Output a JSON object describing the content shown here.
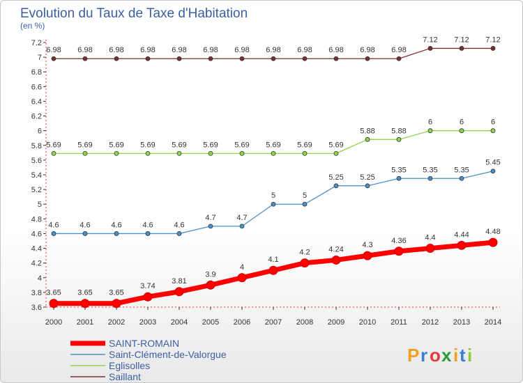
{
  "chart_data": {
    "type": "line",
    "title": "Evolution du Taux de Taxe d'Habitation",
    "subtitle": "(en %)",
    "x": [
      "2000",
      "2001",
      "2002",
      "2003",
      "2004",
      "2005",
      "2006",
      "2007",
      "2008",
      "2009",
      "2010",
      "2011",
      "2012",
      "2013",
      "2014"
    ],
    "ylim": [
      3.6,
      7.2
    ],
    "yticks": [
      "3.6",
      "3.8",
      "4",
      "4.2",
      "4.4",
      "4.6",
      "4.8",
      "5",
      "5.2",
      "5.4",
      "5.6",
      "5.8",
      "6",
      "6.2",
      "6.4",
      "6.6",
      "6.8",
      "7",
      "7.2"
    ],
    "grid": false,
    "legend_position": "bottom-left",
    "series": [
      {
        "name": "SAINT-ROMAIN",
        "color": "#ff0000",
        "values": [
          3.65,
          3.65,
          3.65,
          3.74,
          3.81,
          3.9,
          4,
          4.1,
          4.2,
          4.24,
          4.3,
          4.36,
          4.4,
          4.44,
          4.48
        ],
        "labels": [
          "3.65",
          "3.65",
          "3.65",
          "3.74",
          "3.81",
          "3.9",
          "4",
          "4.1",
          "4.2",
          "4.24",
          "4.3",
          "4.36",
          "4.4",
          "4.44",
          "4.48"
        ]
      },
      {
        "name": "Saint-Clément-de-Valorgue",
        "color": "#4a90c8",
        "values": [
          4.6,
          4.6,
          4.6,
          4.6,
          4.6,
          4.7,
          4.7,
          5,
          5,
          5.25,
          5.25,
          5.35,
          5.35,
          5.35,
          5.45
        ],
        "labels": [
          "4.6",
          "4.6",
          "4.6",
          "4.6",
          "4.6",
          "4.7",
          "4.7",
          "5",
          "5",
          "5.25",
          "5.25",
          "5.35",
          "5.35",
          "5.35",
          "5.45"
        ]
      },
      {
        "name": "Eglisolles",
        "color": "#8fd64a",
        "values": [
          5.69,
          5.69,
          5.69,
          5.69,
          5.69,
          5.69,
          5.69,
          5.69,
          5.69,
          5.69,
          5.88,
          5.88,
          6,
          6,
          6
        ],
        "labels": [
          "5.69",
          "5.69",
          "5.69",
          "5.69",
          "5.69",
          "5.69",
          "5.69",
          "5.69",
          "5.69",
          "5.69",
          "5.88",
          "5.88",
          "6",
          "6",
          "6"
        ]
      },
      {
        "name": "Saillant",
        "color": "#7a2f2f",
        "values": [
          6.98,
          6.98,
          6.98,
          6.98,
          6.98,
          6.98,
          6.98,
          6.98,
          6.98,
          6.98,
          6.98,
          6.98,
          7.12,
          7.12,
          7.12
        ],
        "labels": [
          "6.98",
          "6.98",
          "6.98",
          "6.98",
          "6.98",
          "6.98",
          "6.98",
          "6.98",
          "6.98",
          "6.98",
          "6.98",
          "6.98",
          "7.12",
          "7.12",
          "7.12"
        ]
      }
    ]
  },
  "logo": {
    "text": "Proxiti",
    "letters": [
      "P",
      "r",
      "o",
      "x",
      "i",
      "t",
      "i"
    ],
    "colors": [
      "#f0a020",
      "#3a7fd0",
      "#e63a3a",
      "#2a9a3a",
      "#f0a020",
      "#3a7fd0",
      "#8fc83a"
    ]
  }
}
